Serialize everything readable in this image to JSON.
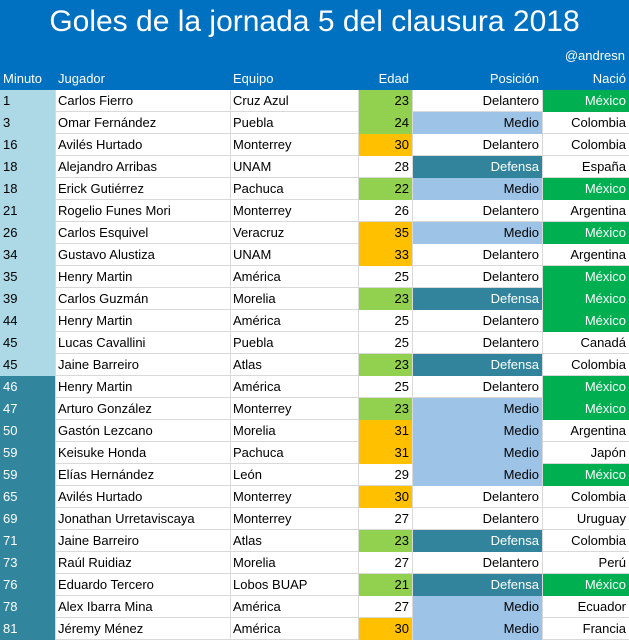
{
  "title": "Goles de la jornada 5 del clausura 2018",
  "credit": "@andresn",
  "colors": {
    "header_blue": "#0070c0",
    "minute_light": "#add8e6",
    "minute_dark": "#31859c",
    "age_green": "#92d050",
    "age_orange": "#ffc000",
    "pos_medio": "#9dc3e6",
    "pos_defensa": "#31849b",
    "country_mexico": "#00b050"
  },
  "columns": [
    "Minuto",
    "Jugador",
    "Equipo",
    "Edad",
    "Posición",
    "Nació"
  ],
  "rows": [
    {
      "minuto": "1",
      "jugador": "Carlos Fierro",
      "equipo": "Cruz Azul",
      "edad": "23",
      "posicion": "Delantero",
      "nacio": "México"
    },
    {
      "minuto": "3",
      "jugador": "Omar Fernández",
      "equipo": "Puebla",
      "edad": "24",
      "posicion": "Medio",
      "nacio": "Colombia"
    },
    {
      "minuto": "16",
      "jugador": "Avilés Hurtado",
      "equipo": "Monterrey",
      "edad": "30",
      "posicion": "Delantero",
      "nacio": "Colombia"
    },
    {
      "minuto": "18",
      "jugador": "Alejandro Arribas",
      "equipo": "UNAM",
      "edad": "28",
      "posicion": "Defensa",
      "nacio": "España"
    },
    {
      "minuto": "18",
      "jugador": "Erick Gutiérrez",
      "equipo": "Pachuca",
      "edad": "22",
      "posicion": "Medio",
      "nacio": "México"
    },
    {
      "minuto": "21",
      "jugador": "Rogelio Funes Mori",
      "equipo": "Monterrey",
      "edad": "26",
      "posicion": "Delantero",
      "nacio": "Argentina"
    },
    {
      "minuto": "26",
      "jugador": "Carlos Esquivel",
      "equipo": "Veracruz",
      "edad": "35",
      "posicion": "Medio",
      "nacio": "México"
    },
    {
      "minuto": "34",
      "jugador": "Gustavo Alustiza",
      "equipo": "UNAM",
      "edad": "33",
      "posicion": "Delantero",
      "nacio": "Argentina"
    },
    {
      "minuto": "35",
      "jugador": "Henry Martin",
      "equipo": "América",
      "edad": "25",
      "posicion": "Delantero",
      "nacio": "México"
    },
    {
      "minuto": "39",
      "jugador": "Carlos Guzmán",
      "equipo": "Morelia",
      "edad": "23",
      "posicion": "Defensa",
      "nacio": "México"
    },
    {
      "minuto": "44",
      "jugador": "Henry Martin",
      "equipo": "América",
      "edad": "25",
      "posicion": "Delantero",
      "nacio": "México"
    },
    {
      "minuto": "45",
      "jugador": "Lucas Cavallini",
      "equipo": "Puebla",
      "edad": "25",
      "posicion": "Delantero",
      "nacio": "Canadá"
    },
    {
      "minuto": "45",
      "jugador": "Jaine Barreiro",
      "equipo": "Atlas",
      "edad": "23",
      "posicion": "Defensa",
      "nacio": "Colombia"
    },
    {
      "minuto": "46",
      "jugador": "Henry Martin",
      "equipo": "América",
      "edad": "25",
      "posicion": "Delantero",
      "nacio": "México"
    },
    {
      "minuto": "47",
      "jugador": "Arturo González",
      "equipo": "Monterrey",
      "edad": "23",
      "posicion": "Medio",
      "nacio": "México"
    },
    {
      "minuto": "50",
      "jugador": "Gastón Lezcano",
      "equipo": "Morelia",
      "edad": "31",
      "posicion": "Medio",
      "nacio": "Argentina"
    },
    {
      "minuto": "59",
      "jugador": "Keisuke Honda",
      "equipo": "Pachuca",
      "edad": "31",
      "posicion": "Medio",
      "nacio": "Japón"
    },
    {
      "minuto": "59",
      "jugador": "Elías Hernández",
      "equipo": "León",
      "edad": "29",
      "posicion": "Medio",
      "nacio": "México"
    },
    {
      "minuto": "65",
      "jugador": "Avilés Hurtado",
      "equipo": "Monterrey",
      "edad": "30",
      "posicion": "Delantero",
      "nacio": "Colombia"
    },
    {
      "minuto": "69",
      "jugador": "Jonathan Urretaviscaya",
      "equipo": "Monterrey",
      "edad": "27",
      "posicion": "Delantero",
      "nacio": "Uruguay"
    },
    {
      "minuto": "71",
      "jugador": "Jaine Barreiro",
      "equipo": "Atlas",
      "edad": "23",
      "posicion": "Defensa",
      "nacio": "Colombia"
    },
    {
      "minuto": "73",
      "jugador": "Raúl Ruidiaz",
      "equipo": "Morelia",
      "edad": "27",
      "posicion": "Delantero",
      "nacio": "Perú"
    },
    {
      "minuto": "76",
      "jugador": "Eduardo Tercero",
      "equipo": "Lobos BUAP",
      "edad": "21",
      "posicion": "Defensa",
      "nacio": "México"
    },
    {
      "minuto": "78",
      "jugador": "Alex Ibarra Mina",
      "equipo": "América",
      "edad": "27",
      "posicion": "Medio",
      "nacio": "Ecuador"
    },
    {
      "minuto": "81",
      "jugador": "Jéremy Ménez",
      "equipo": "América",
      "edad": "30",
      "posicion": "Medio",
      "nacio": "Francia"
    }
  ]
}
